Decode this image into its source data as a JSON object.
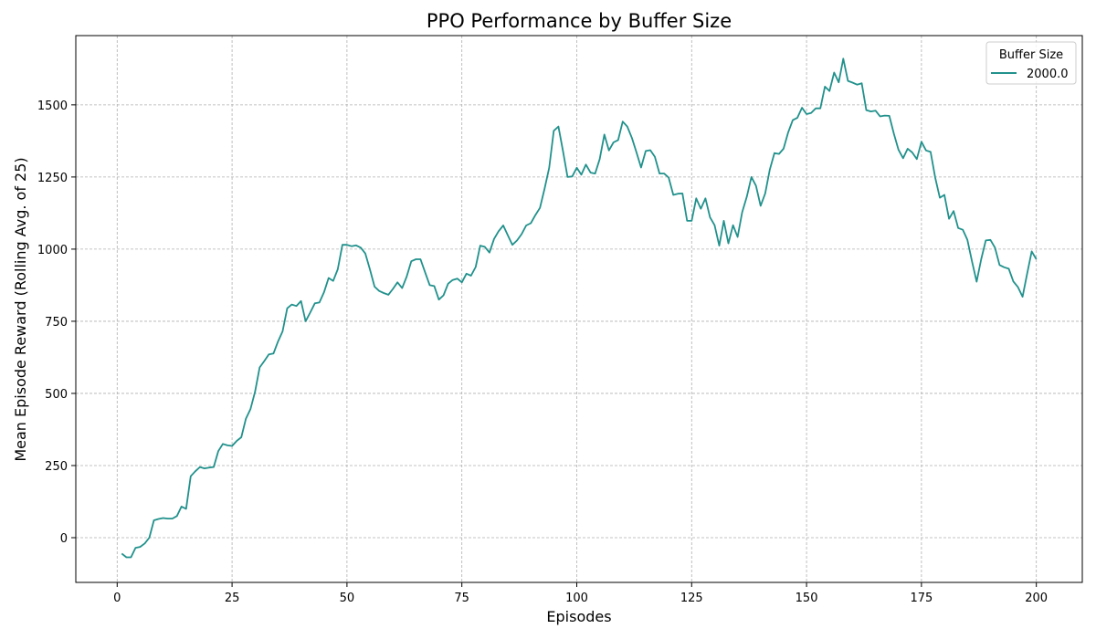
{
  "chart_data": {
    "type": "line",
    "title": "PPO Performance by Buffer Size",
    "xlabel": "Episodes",
    "ylabel": "Mean Episode Reward (Rolling Avg. of 25)",
    "xlim": [
      -9,
      210
    ],
    "ylim": [
      -155,
      1740
    ],
    "xticks": [
      0,
      25,
      50,
      75,
      100,
      125,
      150,
      175,
      200
    ],
    "yticks": [
      0,
      250,
      500,
      750,
      1000,
      1250,
      1500
    ],
    "grid": true,
    "legend": {
      "title": "Buffer Size",
      "placement": "top-right"
    },
    "series": [
      {
        "name": "2000.0",
        "color": "#21918c",
        "x": [
          1,
          2,
          3,
          4,
          5,
          6,
          7,
          8,
          9,
          10,
          11,
          12,
          13,
          14,
          15,
          16,
          17,
          18,
          19,
          20,
          21,
          22,
          23,
          24,
          25,
          26,
          27,
          28,
          29,
          30,
          31,
          32,
          33,
          34,
          35,
          36,
          37,
          38,
          39,
          40,
          41,
          42,
          43,
          44,
          45,
          46,
          47,
          48,
          49,
          50,
          51,
          52,
          53,
          54,
          55,
          56,
          57,
          58,
          59,
          60,
          61,
          62,
          63,
          64,
          65,
          66,
          67,
          68,
          69,
          70,
          71,
          72,
          73,
          74,
          75,
          76,
          77,
          78,
          79,
          80,
          81,
          82,
          83,
          84,
          85,
          86,
          87,
          88,
          89,
          90,
          91,
          92,
          93,
          94,
          95,
          96,
          97,
          98,
          99,
          100,
          101,
          102,
          103,
          104,
          105,
          106,
          107,
          108,
          109,
          110,
          111,
          112,
          113,
          114,
          115,
          116,
          117,
          118,
          119,
          120,
          121,
          122,
          123,
          124,
          125,
          126,
          127,
          128,
          129,
          130,
          131,
          132,
          133,
          134,
          135,
          136,
          137,
          138,
          139,
          140,
          141,
          142,
          143,
          144,
          145,
          146,
          147,
          148,
          149,
          150,
          151,
          152,
          153,
          154,
          155,
          156,
          157,
          158,
          159,
          160,
          161,
          162,
          163,
          164,
          165,
          166,
          167,
          168,
          169,
          170,
          171,
          172,
          173,
          174,
          175,
          176,
          177,
          178,
          179,
          180,
          181,
          182,
          183,
          184,
          185,
          186,
          187,
          188,
          189,
          190,
          191,
          192,
          193,
          194,
          195,
          196,
          197,
          198,
          199,
          200
        ],
        "values": [
          -55,
          -68,
          -68,
          -35,
          -32,
          -20,
          0,
          60,
          65,
          68,
          66,
          66,
          75,
          108,
          100,
          213,
          230,
          245,
          240,
          243,
          245,
          300,
          325,
          320,
          318,
          335,
          348,
          412,
          445,
          505,
          590,
          612,
          635,
          638,
          680,
          715,
          795,
          808,
          803,
          820,
          750,
          780,
          812,
          815,
          850,
          900,
          890,
          930,
          1015,
          1015,
          1010,
          1013,
          1005,
          985,
          930,
          870,
          855,
          848,
          842,
          862,
          885,
          865,
          905,
          958,
          965,
          965,
          920,
          875,
          872,
          825,
          840,
          880,
          893,
          898,
          885,
          915,
          908,
          938,
          1012,
          1008,
          988,
          1035,
          1062,
          1082,
          1048,
          1015,
          1030,
          1052,
          1082,
          1090,
          1118,
          1143,
          1210,
          1282,
          1410,
          1425,
          1340,
          1250,
          1252,
          1282,
          1258,
          1293,
          1265,
          1262,
          1312,
          1397,
          1342,
          1370,
          1378,
          1442,
          1425,
          1385,
          1335,
          1283,
          1340,
          1343,
          1320,
          1262,
          1262,
          1248,
          1188,
          1192,
          1193,
          1098,
          1098,
          1176,
          1140,
          1176,
          1110,
          1083,
          1012,
          1098,
          1020,
          1083,
          1042,
          1128,
          1182,
          1250,
          1220,
          1150,
          1193,
          1275,
          1333,
          1330,
          1348,
          1405,
          1447,
          1455,
          1490,
          1468,
          1472,
          1488,
          1488,
          1563,
          1548,
          1612,
          1578,
          1660,
          1583,
          1577,
          1570,
          1575,
          1482,
          1477,
          1480,
          1460,
          1463,
          1462,
          1400,
          1345,
          1315,
          1348,
          1335,
          1312,
          1372,
          1342,
          1337,
          1247,
          1178,
          1188,
          1105,
          1132,
          1073,
          1067,
          1032,
          958,
          887,
          965,
          1030,
          1032,
          1005,
          945,
          937,
          932,
          888,
          868,
          835,
          915,
          992,
          965
        ]
      }
    ]
  }
}
